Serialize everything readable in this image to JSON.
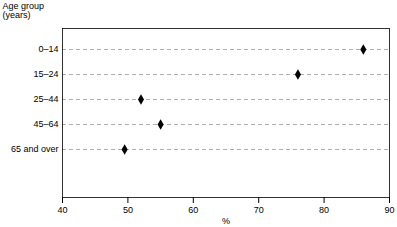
{
  "chart_data": {
    "type": "scatter",
    "orientation": "horizontal",
    "ylabel": "Age group\n(years)",
    "xlabel": "%",
    "categories": [
      "0–14",
      "15–24",
      "25–44",
      "45–64",
      "65 and over"
    ],
    "values": [
      86,
      76,
      52,
      55,
      49.5
    ],
    "xlim": [
      40,
      90
    ],
    "xticks": [
      40,
      50,
      60,
      70,
      80,
      90
    ],
    "grid": true,
    "color": "#000000",
    "marker": "diamond"
  }
}
